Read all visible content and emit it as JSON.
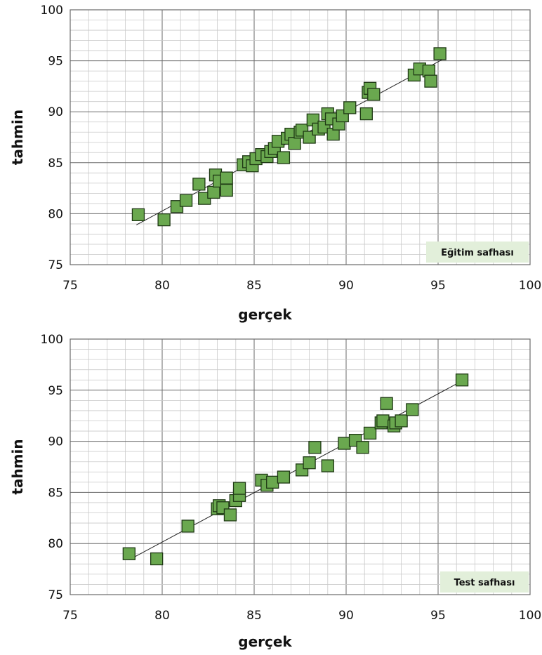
{
  "chart_data": [
    {
      "type": "scatter",
      "panel_label": "Eğitim safhası",
      "xlabel": "gerçek",
      "ylabel": "tahmin",
      "xlim": [
        75,
        100
      ],
      "ylim": [
        75,
        100
      ],
      "xticks": [
        "75",
        "80",
        "85",
        "90",
        "95",
        "100"
      ],
      "yticks": [
        "75",
        "80",
        "85",
        "90",
        "95",
        "100"
      ],
      "grid": true,
      "trendline": {
        "x": [
          78.6,
          95.2
        ],
        "y": [
          78.9,
          95.1
        ]
      },
      "points": [
        {
          "x": 78.7,
          "y": 79.9
        },
        {
          "x": 80.1,
          "y": 79.4
        },
        {
          "x": 80.8,
          "y": 80.7
        },
        {
          "x": 81.3,
          "y": 81.3
        },
        {
          "x": 82.0,
          "y": 82.9
        },
        {
          "x": 82.3,
          "y": 81.5
        },
        {
          "x": 82.8,
          "y": 82.1
        },
        {
          "x": 82.9,
          "y": 83.8
        },
        {
          "x": 83.1,
          "y": 83.2
        },
        {
          "x": 83.5,
          "y": 82.3
        },
        {
          "x": 83.5,
          "y": 83.5
        },
        {
          "x": 84.4,
          "y": 84.8
        },
        {
          "x": 84.7,
          "y": 85.1
        },
        {
          "x": 84.9,
          "y": 84.7
        },
        {
          "x": 85.1,
          "y": 85.4
        },
        {
          "x": 85.4,
          "y": 85.8
        },
        {
          "x": 85.7,
          "y": 85.6
        },
        {
          "x": 85.9,
          "y": 86.1
        },
        {
          "x": 86.1,
          "y": 86.4
        },
        {
          "x": 86.3,
          "y": 87.1
        },
        {
          "x": 86.6,
          "y": 85.5
        },
        {
          "x": 86.8,
          "y": 87.4
        },
        {
          "x": 87.0,
          "y": 87.8
        },
        {
          "x": 87.2,
          "y": 86.9
        },
        {
          "x": 87.5,
          "y": 88.0
        },
        {
          "x": 87.6,
          "y": 88.2
        },
        {
          "x": 88.0,
          "y": 87.5
        },
        {
          "x": 88.2,
          "y": 89.2
        },
        {
          "x": 88.5,
          "y": 88.3
        },
        {
          "x": 88.8,
          "y": 88.5
        },
        {
          "x": 89.0,
          "y": 89.8
        },
        {
          "x": 89.2,
          "y": 89.3
        },
        {
          "x": 89.3,
          "y": 87.8
        },
        {
          "x": 89.6,
          "y": 88.8
        },
        {
          "x": 89.8,
          "y": 89.6
        },
        {
          "x": 90.2,
          "y": 90.4
        },
        {
          "x": 91.1,
          "y": 89.8
        },
        {
          "x": 91.2,
          "y": 91.9
        },
        {
          "x": 91.3,
          "y": 92.3
        },
        {
          "x": 91.5,
          "y": 91.7
        },
        {
          "x": 93.7,
          "y": 93.6
        },
        {
          "x": 94.0,
          "y": 94.2
        },
        {
          "x": 94.5,
          "y": 94.0
        },
        {
          "x": 94.6,
          "y": 93.0
        },
        {
          "x": 95.1,
          "y": 95.7
        }
      ],
      "colors": {
        "marker_fill": "#6aa84f",
        "marker_edge": "#1e3814",
        "badge_bg": "#e2efda",
        "grid_major": "#6a6a6a",
        "grid_minor": "#c9c9c9"
      }
    },
    {
      "type": "scatter",
      "panel_label": "Test safhası",
      "xlabel": "gerçek",
      "ylabel": "tahmin",
      "xlim": [
        75,
        100
      ],
      "ylim": [
        75,
        100
      ],
      "xticks": [
        "75",
        "80",
        "85",
        "90",
        "95",
        "100"
      ],
      "yticks": [
        "75",
        "80",
        "85",
        "90",
        "95",
        "100"
      ],
      "grid": true,
      "trendline": {
        "x": [
          78.2,
          96.4
        ],
        "y": [
          78.4,
          96.0
        ]
      },
      "points": [
        {
          "x": 78.2,
          "y": 79.0
        },
        {
          "x": 79.7,
          "y": 78.5
        },
        {
          "x": 81.4,
          "y": 81.7
        },
        {
          "x": 83.0,
          "y": 83.4
        },
        {
          "x": 83.1,
          "y": 83.7
        },
        {
          "x": 83.3,
          "y": 83.5
        },
        {
          "x": 83.7,
          "y": 82.8
        },
        {
          "x": 84.0,
          "y": 84.2
        },
        {
          "x": 84.2,
          "y": 84.7
        },
        {
          "x": 84.2,
          "y": 85.4
        },
        {
          "x": 85.4,
          "y": 86.2
        },
        {
          "x": 85.7,
          "y": 85.7
        },
        {
          "x": 86.0,
          "y": 86.0
        },
        {
          "x": 86.6,
          "y": 86.5
        },
        {
          "x": 87.6,
          "y": 87.2
        },
        {
          "x": 88.0,
          "y": 87.9
        },
        {
          "x": 88.3,
          "y": 89.4
        },
        {
          "x": 89.0,
          "y": 87.6
        },
        {
          "x": 89.9,
          "y": 89.8
        },
        {
          "x": 90.5,
          "y": 90.1
        },
        {
          "x": 90.9,
          "y": 89.4
        },
        {
          "x": 91.3,
          "y": 90.8
        },
        {
          "x": 91.9,
          "y": 91.8
        },
        {
          "x": 92.0,
          "y": 92.0
        },
        {
          "x": 92.2,
          "y": 93.7
        },
        {
          "x": 92.6,
          "y": 91.5
        },
        {
          "x": 92.7,
          "y": 91.8
        },
        {
          "x": 93.0,
          "y": 92.0
        },
        {
          "x": 93.6,
          "y": 93.1
        },
        {
          "x": 96.3,
          "y": 96.0
        }
      ],
      "colors": {
        "marker_fill": "#6aa84f",
        "marker_edge": "#1e3814",
        "badge_bg": "#e2efda",
        "grid_major": "#6a6a6a",
        "grid_minor": "#c9c9c9"
      }
    }
  ]
}
